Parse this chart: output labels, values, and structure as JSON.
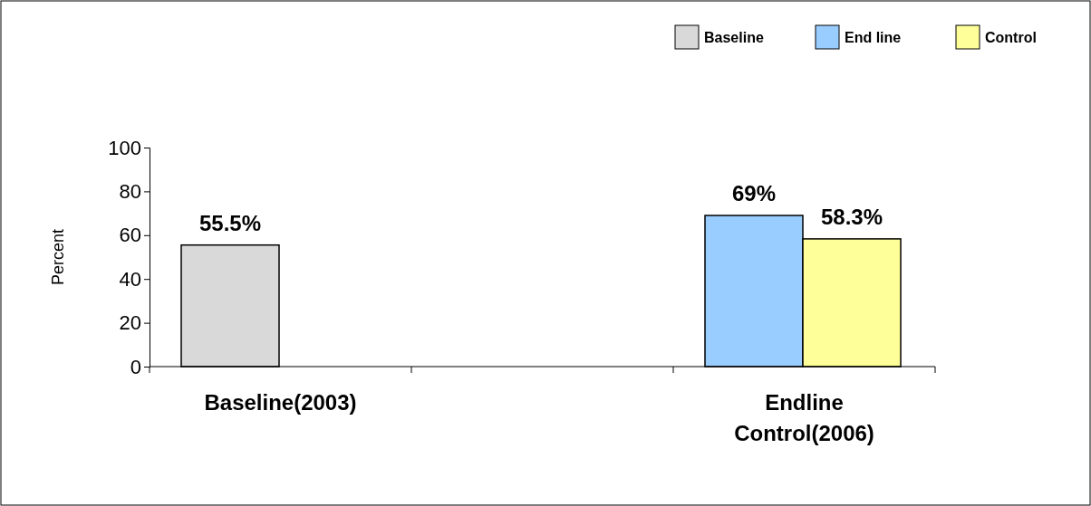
{
  "chart_data": {
    "type": "bar",
    "ylabel": "Percent",
    "categories": [
      "Baseline(2003)",
      null,
      "Endline Control(2006)"
    ],
    "series": [
      {
        "name": "Baseline",
        "color": "#d9d9d9",
        "values": [
          55.5,
          null,
          null
        ],
        "value_labels": [
          "55.5%",
          null,
          null
        ]
      },
      {
        "name": "End line",
        "color": "#99ccff",
        "values": [
          null,
          null,
          69
        ],
        "value_labels": [
          null,
          null,
          "69%"
        ]
      },
      {
        "name": "Control",
        "color": "#ffff99",
        "values": [
          null,
          null,
          58.3
        ],
        "value_labels": [
          null,
          null,
          "58.3%"
        ]
      }
    ],
    "ylim": [
      0,
      100
    ],
    "yticks": [
      0,
      20,
      40,
      60,
      80,
      100
    ],
    "grid": false,
    "legend": "top right"
  }
}
